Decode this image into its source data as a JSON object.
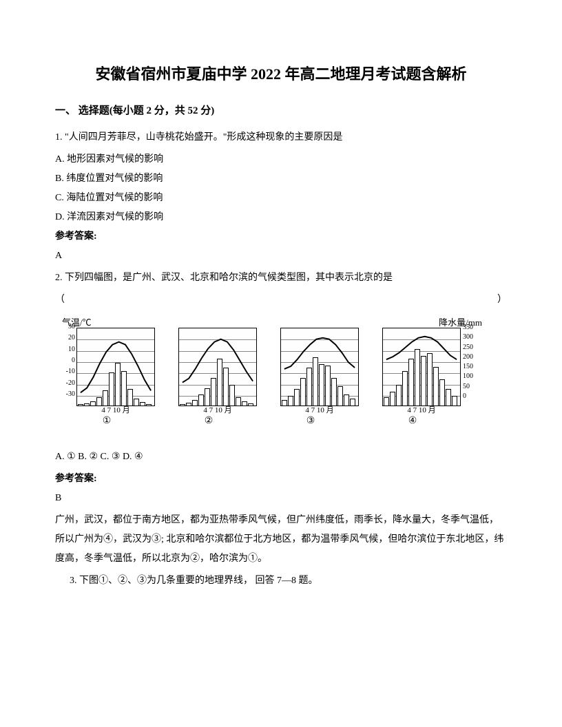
{
  "title": "安徽省宿州市夏庙中学 2022 年高二地理月考试题含解析",
  "section_header": "一、 选择题(每小题 2 分，共 52 分)",
  "q1": {
    "stem": "1. \"人间四月芳菲尽，山寺桃花始盛开。\"形成这种现象的主要原因是",
    "options": {
      "a": "A. 地形因素对气候的影响",
      "b": "B. 纬度位置对气候的影响",
      "c": "C. 海陆位置对气候的影响",
      "d": "D. 洋流因素对气候的影响"
    },
    "answer_label": "参考答案:",
    "answer": "A"
  },
  "q2": {
    "stem": "2. 下列四幅图，是广州、武汉、北京和哈尔滨的气候类型图，其中表示北京的是",
    "paren_left": "（",
    "paren_right": "）",
    "chart": {
      "temp_label": "气温/℃",
      "precip_label": "降水量/mm",
      "y_left_ticks": [
        "30",
        "20",
        "10",
        "0",
        "-10",
        "-20",
        "-30"
      ],
      "y_right_ticks": [
        "350",
        "300",
        "250",
        "200",
        "150",
        "100",
        "50",
        "0"
      ],
      "x_label": "4   7   10 月",
      "numbers": [
        "①",
        "②",
        "③",
        "④"
      ],
      "temp_color": "#000000",
      "bar_border": "#000000",
      "grid_color": "#888888",
      "bg_color": "#fefefe",
      "charts": [
        {
          "bars": [
            2,
            3,
            6,
            12,
            22,
            48,
            62,
            50,
            24,
            10,
            5,
            2
          ],
          "temp": [
            95,
            88,
            72,
            52,
            35,
            24,
            20,
            24,
            38,
            56,
            76,
            92
          ]
        },
        {
          "bars": [
            2,
            4,
            8,
            16,
            25,
            40,
            68,
            55,
            30,
            12,
            6,
            3
          ],
          "temp": [
            80,
            74,
            60,
            44,
            30,
            20,
            16,
            20,
            32,
            48,
            64,
            78
          ]
        },
        {
          "bars": [
            8,
            14,
            24,
            40,
            55,
            70,
            60,
            58,
            40,
            28,
            16,
            10
          ],
          "temp": [
            60,
            56,
            46,
            34,
            24,
            16,
            14,
            16,
            24,
            36,
            50,
            58
          ]
        },
        {
          "bars": [
            12,
            20,
            30,
            50,
            68,
            82,
            72,
            76,
            56,
            38,
            24,
            14
          ],
          "temp": [
            46,
            42,
            36,
            28,
            20,
            14,
            12,
            14,
            20,
            30,
            40,
            46
          ]
        }
      ]
    },
    "options_line": "A. ①  B. ②  C. ③  D. ④",
    "answer_label": "参考答案:",
    "answer": "B",
    "explanation": "广州，武汉，都位于南方地区，都为亚热带季风气候，但广州纬度低，雨季长，降水量大，冬季气温低，所以广州为④，武汉为③; 北京和哈尔滨都位于北方地区，都为温带季风气候，但哈尔滨位于东北地区，纬度高，冬季气温低，所以北京为②，哈尔滨为①。"
  },
  "q3": {
    "stem": "3. 下图①、②、③为几条重要的地理界线， 回答 7—8 题。"
  }
}
